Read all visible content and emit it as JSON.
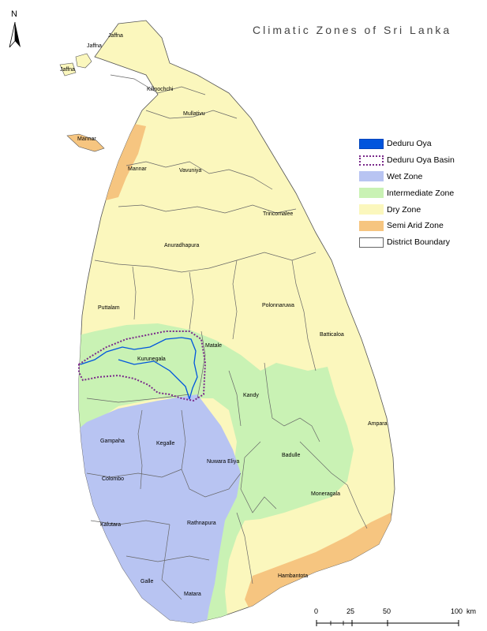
{
  "title": "Climatic Zones of Sri Lanka",
  "north_arrow": {
    "label": "N",
    "icon": "north-arrow-icon"
  },
  "legend": {
    "items": [
      {
        "label": "Deduru Oya",
        "fill": "#0055dd",
        "stroke": "#0044bb",
        "style": "solid"
      },
      {
        "label": "Deduru Oya Basin",
        "fill": "#ffffff",
        "stroke": "#7a2a8a",
        "style": "dotted"
      },
      {
        "label": "Wet Zone",
        "fill": "#b8c4f2",
        "stroke": "#b8c4f2",
        "style": "solid"
      },
      {
        "label": "Intermediate Zone",
        "fill": "#c9f2b4",
        "stroke": "#c9f2b4",
        "style": "solid"
      },
      {
        "label": "Dry Zone",
        "fill": "#fbf7bd",
        "stroke": "#fbf7bd",
        "style": "solid"
      },
      {
        "label": "Semi Arid Zone",
        "fill": "#f6c580",
        "stroke": "#f6c580",
        "style": "solid"
      },
      {
        "label": "District Boundary",
        "fill": "#ffffff",
        "stroke": "#666666",
        "style": "solid"
      }
    ]
  },
  "districts": [
    "Jaffna",
    "Jaffna",
    "Jaffna",
    "Kilinochchi",
    "Mullativu",
    "Mannar",
    "Mannar",
    "Vavuniya",
    "Trincomalee",
    "Anuradhapura",
    "Puttalam",
    "Polonnaruwa",
    "Batticaloa",
    "Kurunegala",
    "Matale",
    "Kandy",
    "Ampara",
    "Gampaha",
    "Kegalle",
    "Nuwara Eliya",
    "Badulle",
    "Colombo",
    "Moneragala",
    "Kalutara",
    "Rathnapura",
    "Hambantota",
    "Galle",
    "Matara"
  ],
  "scale_bar": {
    "ticks": [
      "0",
      "25",
      "50",
      "100"
    ],
    "unit": "km"
  },
  "colors": {
    "dry": "#fbf7bd",
    "wet": "#b8c4f2",
    "intermediate": "#c9f2b4",
    "semi_arid": "#f6c580",
    "boundary": "#666666",
    "river": "#0055dd",
    "basin": "#7a2a8a"
  }
}
